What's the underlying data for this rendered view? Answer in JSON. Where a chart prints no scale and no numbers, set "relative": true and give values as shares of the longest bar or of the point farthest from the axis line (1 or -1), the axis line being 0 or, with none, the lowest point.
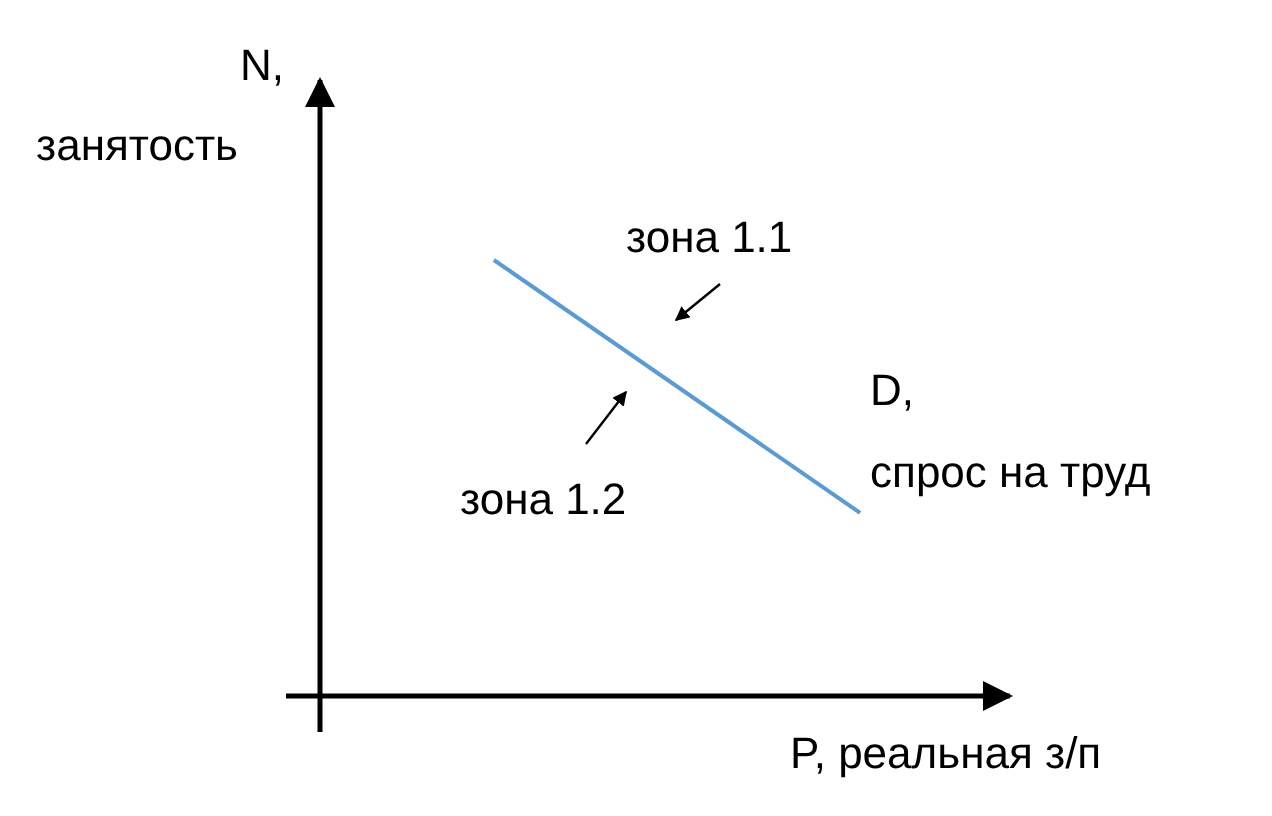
{
  "chart_data": {
    "type": "line",
    "relative": true,
    "xlabel": "P, реальная з/п",
    "ylabel": "N,\nзанятость",
    "categories": [
      null,
      null
    ],
    "series": [
      {
        "name": "D,\nспрос на труд",
        "color": "#5b9bd5",
        "values": [
          1,
          0.42
        ]
      }
    ],
    "annotations": [
      "зона 1.1",
      "зона 1.2"
    ],
    "marker": "none",
    "line_style": "solid"
  }
}
